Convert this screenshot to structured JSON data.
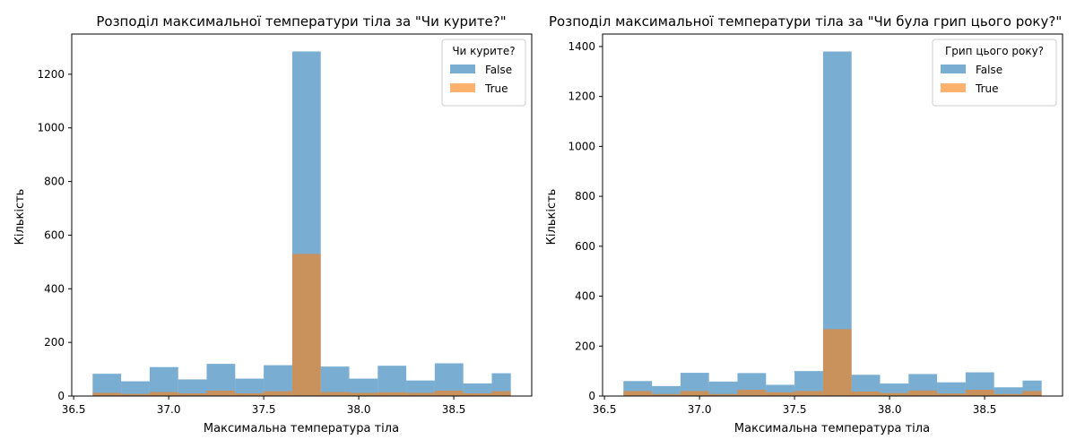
{
  "colors": {
    "false_series": "#1f77b4",
    "true_series": "#ff7f0e",
    "alpha": 0.6
  },
  "chart_data": [
    {
      "type": "bar",
      "title": "Розподіл максимальної температури тіла за \"Чи курите?\"",
      "xlabel": "Максимальна температура тіла",
      "ylabel": "Кількість",
      "xlim": [
        36.6,
        38.8
      ],
      "ylim": [
        0,
        1350
      ],
      "xticks": [
        36.5,
        37.0,
        37.5,
        38.0,
        38.5
      ],
      "yticks": [
        0,
        200,
        400,
        600,
        800,
        1000,
        1200
      ],
      "grid": false,
      "legend": {
        "title": "Чи курите?",
        "position": "top-right"
      },
      "bin_edges": [
        36.6,
        36.75,
        36.9,
        37.05,
        37.2,
        37.35,
        37.5,
        37.65,
        37.8,
        37.95,
        38.1,
        38.25,
        38.4,
        38.55,
        38.7,
        38.8
      ],
      "series": [
        {
          "name": "False",
          "values": [
            83,
            55,
            108,
            62,
            120,
            65,
            115,
            1285,
            110,
            65,
            113,
            58,
            122,
            47,
            85
          ]
        },
        {
          "name": "True",
          "values": [
            12,
            8,
            15,
            10,
            20,
            10,
            18,
            530,
            15,
            12,
            14,
            12,
            20,
            10,
            18
          ]
        }
      ]
    },
    {
      "type": "bar",
      "title": "Розподіл максимальної температури тіла за \"Чи була грип цього року?\"",
      "xlabel": "Максимальна температура тіла",
      "ylabel": "Кількість",
      "xlim": [
        36.6,
        38.8
      ],
      "ylim": [
        0,
        1450
      ],
      "xticks": [
        36.5,
        37.0,
        37.5,
        38.0,
        38.5
      ],
      "yticks": [
        0,
        200,
        400,
        600,
        800,
        1000,
        1200,
        1400
      ],
      "grid": false,
      "legend": {
        "title": "Грип цього року?",
        "position": "top-right"
      },
      "bin_edges": [
        36.6,
        36.75,
        36.9,
        37.05,
        37.2,
        37.35,
        37.5,
        37.65,
        37.8,
        37.95,
        38.1,
        38.25,
        38.4,
        38.55,
        38.7,
        38.8
      ],
      "series": [
        {
          "name": "False",
          "values": [
            60,
            40,
            93,
            58,
            92,
            45,
            100,
            1380,
            85,
            50,
            88,
            55,
            95,
            35,
            62
          ]
        },
        {
          "name": "True",
          "values": [
            20,
            8,
            20,
            8,
            25,
            15,
            20,
            268,
            18,
            12,
            22,
            10,
            25,
            8,
            20
          ]
        }
      ]
    }
  ]
}
